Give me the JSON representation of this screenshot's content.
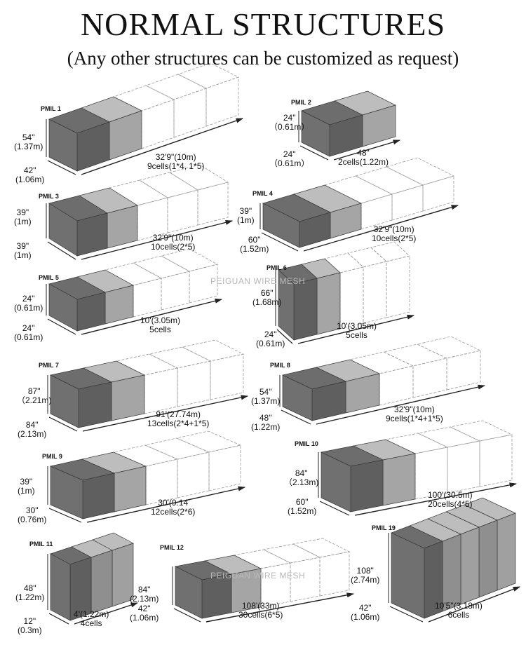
{
  "header": {
    "title": "NORMAL STRUCTURES",
    "subtitle": "(Any other structures can be customized as request)"
  },
  "watermark": "PEIGUAN WIRE MESH",
  "colors": {
    "dark_cell": "#5f5f5f",
    "light_cell": "#a5a5a5",
    "wireframe": "#9a9a9a"
  },
  "panels": [
    {
      "name": "PMIL 1",
      "height": "54\"",
      "height_m": "(1.37m)",
      "width": "42\"",
      "width_m": "(1.06m)",
      "length": "32'9\"(10m)",
      "cells": "9cells(1*4, 1*5)"
    },
    {
      "name": "PMIL 2",
      "height": "24\"",
      "height_m": "（0.61m）",
      "width": "24\"",
      "width_m": "（0.61m）",
      "length": "48\"",
      "cells": "2cells(1.22m)"
    },
    {
      "name": "PMIL 3",
      "height": "39\"",
      "height_m": "(1m)",
      "width": "39\"",
      "width_m": "(1m)",
      "length": "32'9\"(10m)",
      "cells": "10cells(2*5)"
    },
    {
      "name": "PMIL 4",
      "height": "39\"",
      "height_m": "(1m)",
      "width": "60\"",
      "width_m": "(1.52m)",
      "length": "32'9\"(10m)",
      "cells": "10cells(2*5)"
    },
    {
      "name": "PMIL 5",
      "height": "24\"",
      "height_m": "(0.61m)",
      "width": "24\"",
      "width_m": "(0.61m)",
      "length": "10'(3.05m)",
      "cells": "5cells"
    },
    {
      "name": "PMIL 6",
      "height": "66\"",
      "height_m": "(1.68m)",
      "width": "24\"",
      "width_m": "(0.61m)",
      "length": "10'(3.05m)",
      "cells": "5cells"
    },
    {
      "name": "PMIL 7",
      "height": "87\"",
      "height_m": "（2.21m)",
      "width": "84\"",
      "width_m": "(2.13m)",
      "length": "91'(27.74m)",
      "cells": "13cells(2*4+1*5)"
    },
    {
      "name": "PMIL 8",
      "height": "54\"",
      "height_m": "(1.37m)",
      "width": "48\"",
      "width_m": "(1.22m)",
      "length": "32'9\"(10m)",
      "cells": "9cells(1*4+1*5)"
    },
    {
      "name": "PMIL 9",
      "height": "39\"",
      "height_m": "(1m)",
      "width": "30\"",
      "width_m": "(0.76m)",
      "length": "30'(9.14",
      "cells": "12cells(2*6)"
    },
    {
      "name": "PMIL 10",
      "height": "84\"",
      "height_m": "（2.13m)",
      "width": "60\"",
      "width_m": "(1.52m)",
      "length": "100'(30.5m)",
      "cells": "20cells(4*5)"
    },
    {
      "name": "PMIL 11",
      "height": "48\"",
      "height_m": "(1.22m)",
      "width": "12\"",
      "width_m": "(0.3m)",
      "length": "4'(1.22m)",
      "cells": "4cells"
    },
    {
      "name": "PMIL 12",
      "height": "84\"",
      "height_m": "(2.13m)",
      "width": "42\"",
      "width_m": "(1.06m)",
      "length": "108'(33m)",
      "cells": "30cells(6*5)"
    },
    {
      "name": "PMIL 19",
      "height": "108\"",
      "height_m": "(2.74m)",
      "width": "42\"",
      "width_m": "(1.06m)",
      "length": "10'5\"(3.18m)",
      "cells": "6cells"
    }
  ]
}
